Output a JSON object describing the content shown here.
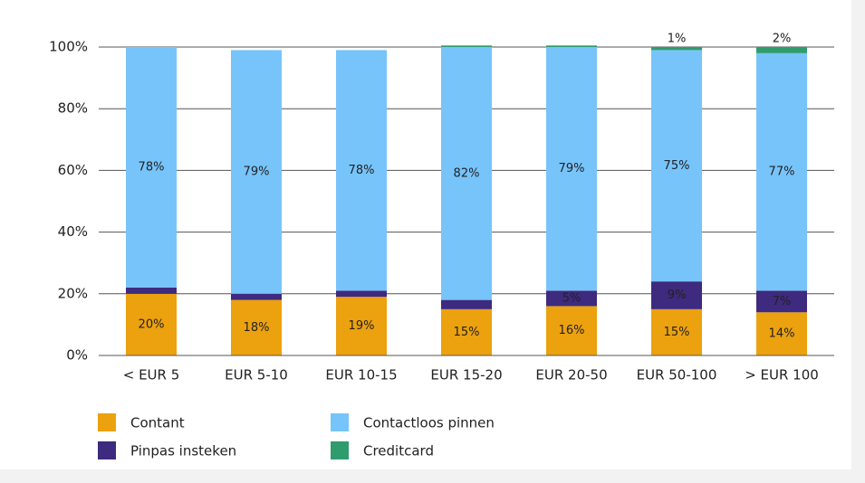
{
  "chart_data": {
    "type": "stacked-bar",
    "categories": [
      "<  EUR 5",
      "EUR 5-10",
      "EUR 10-15",
      "EUR 15-20",
      "EUR 20-50",
      "EUR 50-100",
      "> EUR 100"
    ],
    "series": [
      {
        "name": "Contant",
        "color": "#eca10f",
        "values": [
          20,
          18,
          19,
          15,
          16,
          15,
          14
        ],
        "value_labels": [
          "20%",
          "18%",
          "19%",
          "15%",
          "16%",
          "15%",
          "14%"
        ]
      },
      {
        "name": "Pinpas insteken",
        "color": "#3e2a7e",
        "values": [
          2,
          2,
          2,
          3,
          5,
          9,
          7
        ],
        "value_labels": [
          "2%",
          "2%",
          "2%",
          "3%",
          "5%",
          "9%",
          "7%"
        ]
      },
      {
        "name": "Contactloos pinnen",
        "color": "#77c4fb",
        "values": [
          78,
          79,
          78,
          82,
          79,
          75,
          77
        ],
        "value_labels": [
          "78%",
          "79%",
          "78%",
          "82%",
          "79%",
          "75%",
          "77%"
        ]
      },
      {
        "name": "Creditcard",
        "color": "#2f9c6e",
        "values": [
          0,
          0,
          0,
          0.5,
          0.5,
          1,
          2
        ],
        "value_labels": [
          null,
          null,
          null,
          null,
          null,
          "1%",
          "2%"
        ]
      }
    ],
    "ylim": [
      0,
      100
    ],
    "yticks": [
      {
        "value": 0,
        "label": "0%"
      },
      {
        "value": 20,
        "label": "20%"
      },
      {
        "value": 40,
        "label": "40%"
      },
      {
        "value": 60,
        "label": "60%"
      },
      {
        "value": 80,
        "label": "80%"
      },
      {
        "value": 100,
        "label": "100%"
      }
    ],
    "grid": true
  }
}
